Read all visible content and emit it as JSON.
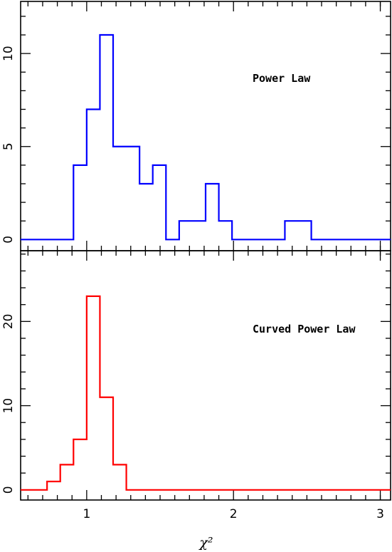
{
  "chart_data": [
    {
      "type": "step",
      "label": "Power Law",
      "color": "#0000ff",
      "xlim": [
        0.55,
        3.07
      ],
      "ylim": [
        -0.6,
        12.8
      ],
      "yticks_major": [
        0,
        5,
        10
      ],
      "yticks_minor": [
        1,
        2,
        3,
        4,
        6,
        7,
        8,
        9,
        11,
        12
      ],
      "bin_edges": [
        0.55,
        0.91,
        1.0,
        1.09,
        1.18,
        1.36,
        1.45,
        1.54,
        1.63,
        1.81,
        1.9,
        1.99,
        2.35,
        2.53,
        3.07
      ],
      "counts": [
        0,
        4,
        7,
        11,
        5,
        3,
        4,
        0,
        1,
        3,
        1,
        0,
        1,
        0
      ]
    },
    {
      "type": "step",
      "label": "Curved Power Law",
      "color": "#ff0000",
      "xlim": [
        0.55,
        3.07
      ],
      "ylim": [
        -1.2,
        28.4
      ],
      "yticks_major": [
        0,
        10,
        20
      ],
      "yticks_minor": [
        2,
        4,
        6,
        8,
        12,
        14,
        16,
        18,
        22,
        24,
        26,
        28
      ],
      "bin_edges": [
        0.55,
        0.73,
        0.82,
        0.91,
        1.0,
        1.09,
        1.18,
        1.27,
        3.07
      ],
      "counts": [
        0,
        1,
        3,
        6,
        23,
        11,
        3,
        0
      ]
    }
  ],
  "x_axis": {
    "ticks_major": [
      1,
      2,
      3
    ],
    "tick_labels": [
      "1",
      "2",
      "3"
    ],
    "ticks_minor": [
      0.6,
      0.7,
      0.8,
      0.9,
      1.1,
      1.2,
      1.3,
      1.4,
      1.5,
      1.6,
      1.7,
      1.8,
      1.9,
      2.1,
      2.2,
      2.3,
      2.4,
      2.5,
      2.6,
      2.7,
      2.8,
      2.9,
      3.0
    ],
    "label": "χ²"
  }
}
